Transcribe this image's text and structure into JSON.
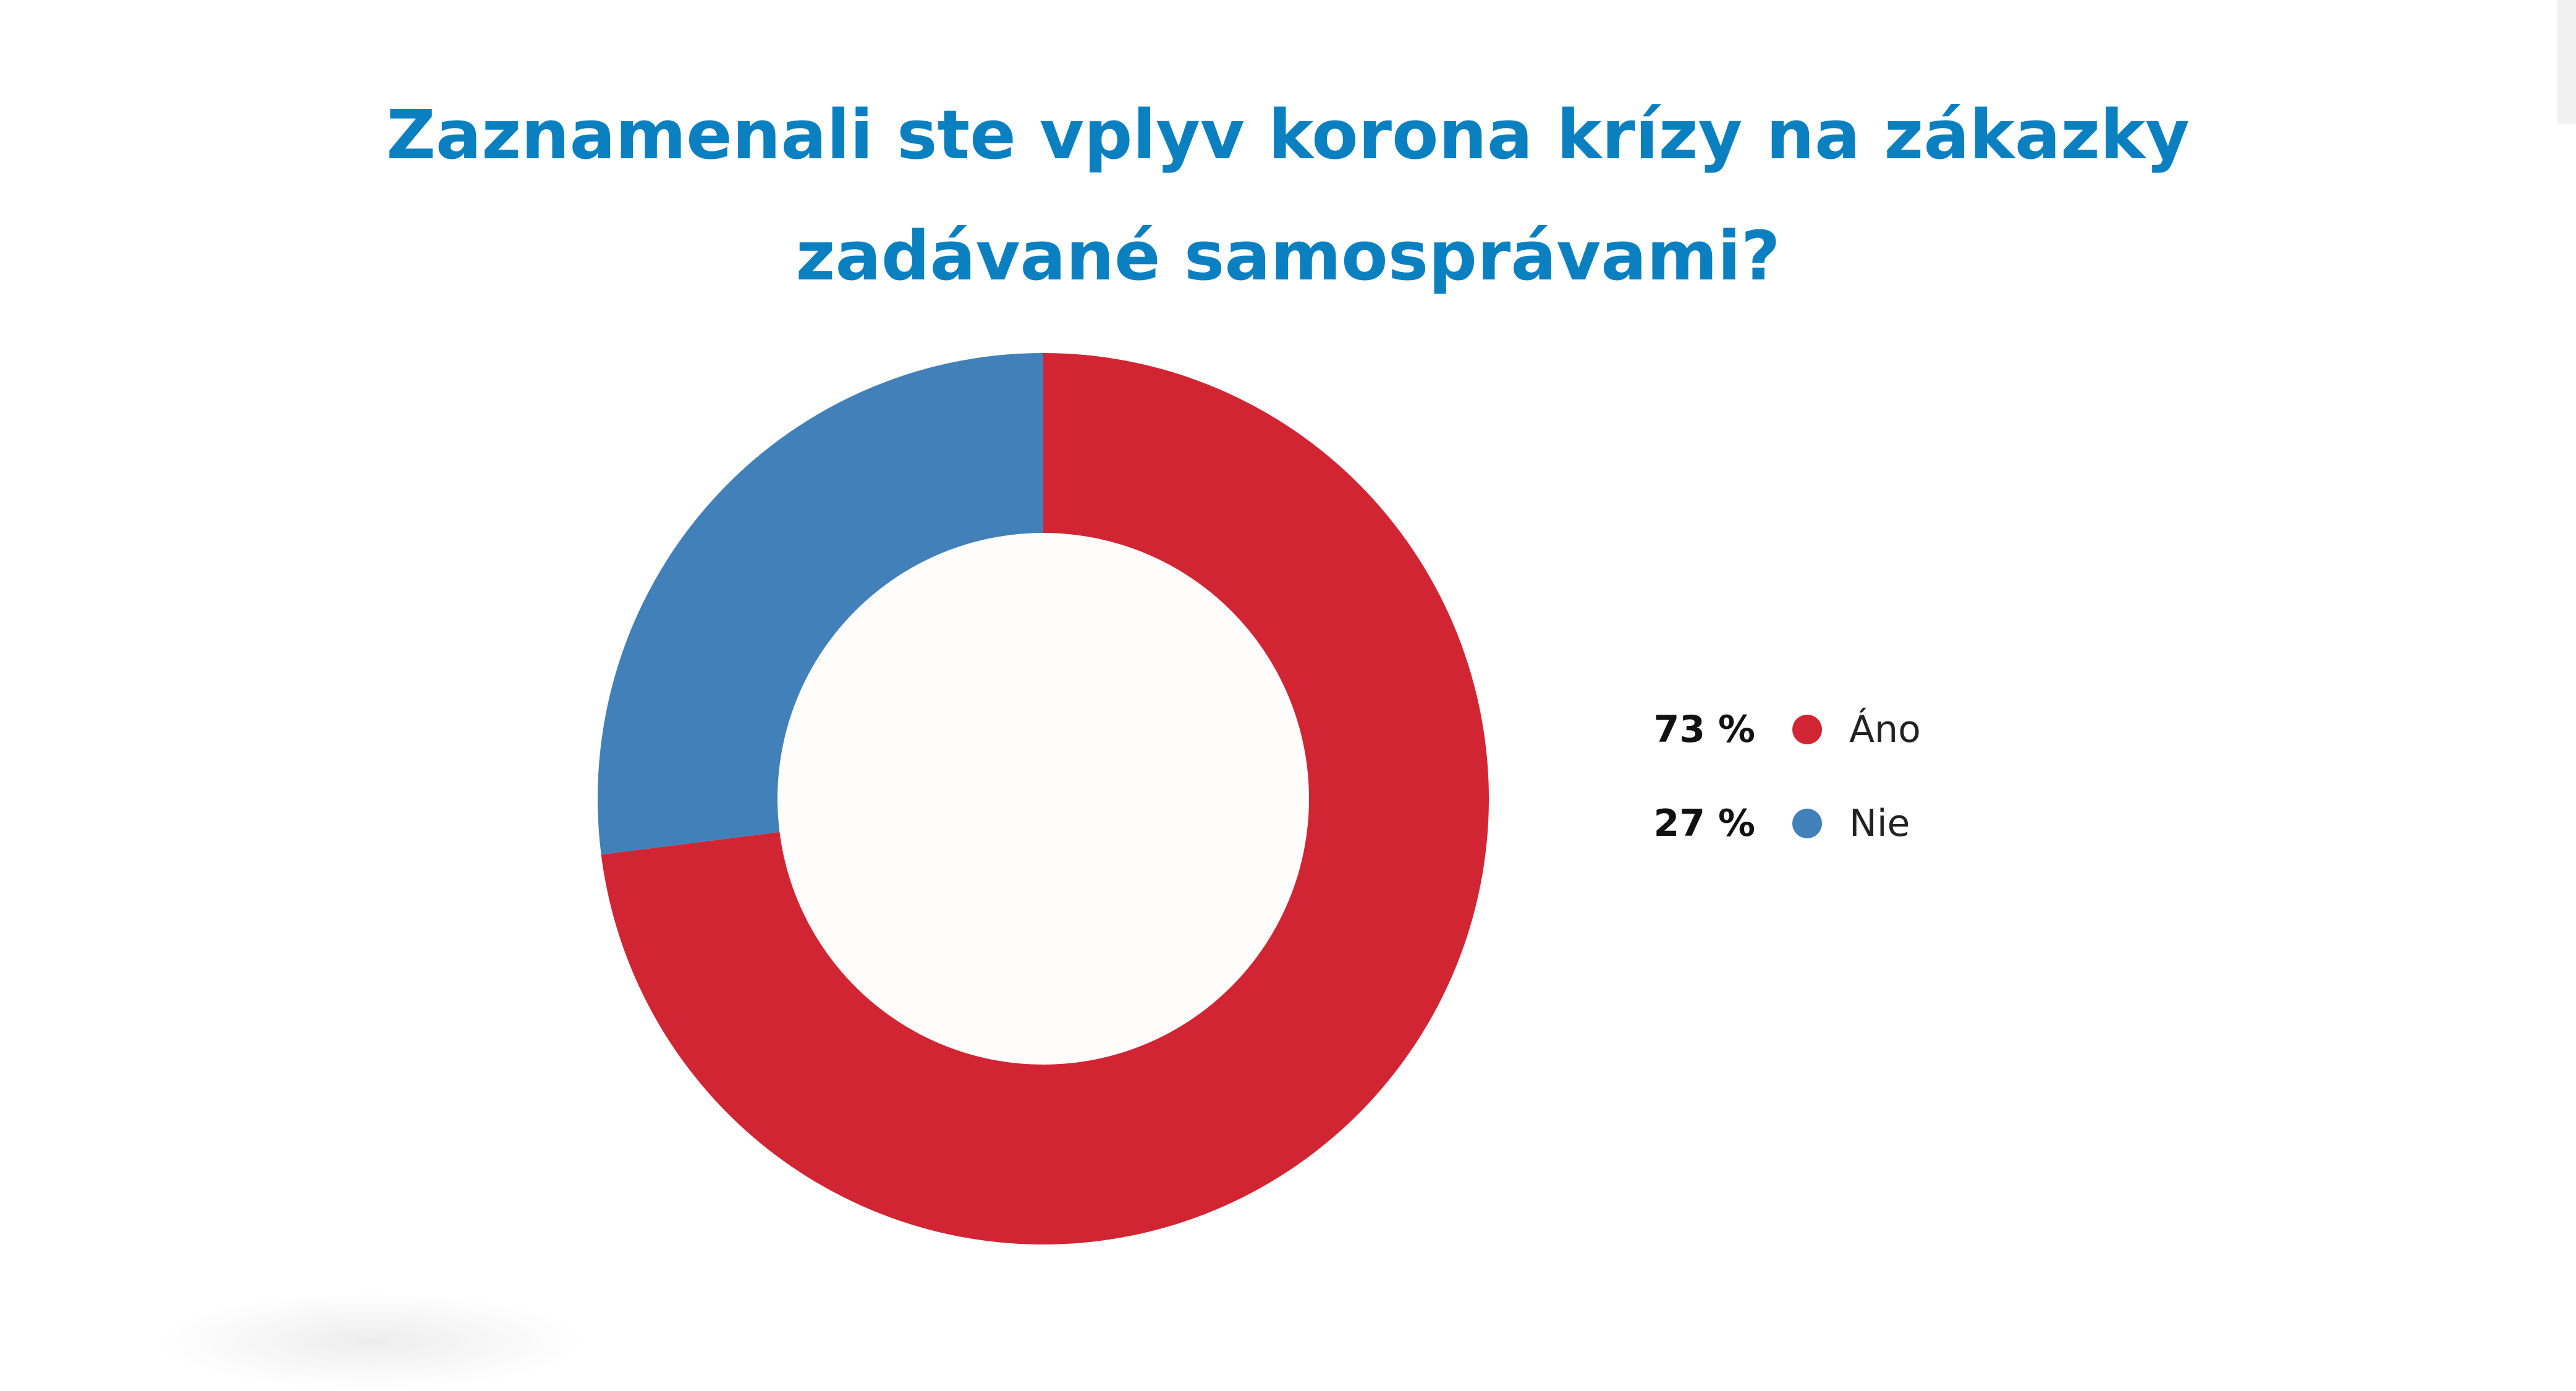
{
  "chart_data": {
    "type": "pie",
    "style": "donut",
    "title": "Zaznamenali ste vplyv korona krízy na zákazky zadávané samosprávami?",
    "title_lines": [
      "Zaznamenali ste vplyv korona krízy na zákazky",
      "zadávané samosprávami?"
    ],
    "slices": [
      {
        "label": "Áno",
        "value": 73,
        "display": "73 %",
        "color": "#d12534"
      },
      {
        "label": "Nie",
        "value": 27,
        "display": "27 %",
        "color": "#4280b9"
      }
    ],
    "legend_position": "right"
  }
}
